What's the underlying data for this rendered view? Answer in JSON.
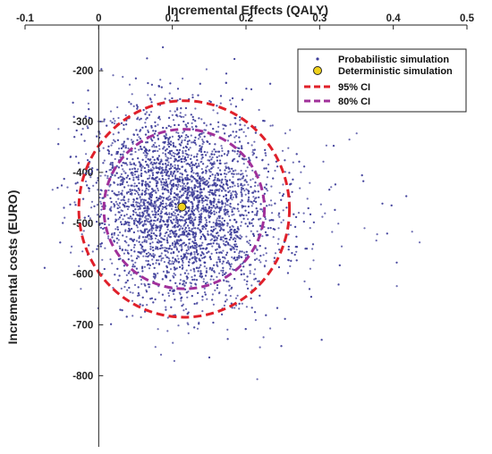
{
  "chart_data": {
    "type": "scatter",
    "xlabel": "Incremental Effects (QALY)",
    "ylabel": "Incremental costs (EURO)",
    "xlim": [
      -0.1,
      0.5
    ],
    "ylim": [
      -940,
      -110
    ],
    "y_reversed": true,
    "x_axis_position": "top",
    "x_ticks": [
      -0.1,
      0,
      0.1,
      0.2,
      0.3,
      0.4,
      0.5
    ],
    "y_ticks": [
      -200,
      -300,
      -400,
      -500,
      -600,
      -700,
      -800
    ],
    "x_tick_labels": [
      "-0.1",
      "0",
      "0.1",
      "0.2",
      "0.3",
      "0.4",
      "0.5"
    ],
    "y_tick_labels": [
      "-200",
      "-300",
      "-400",
      "-500",
      "-600",
      "-700",
      "-800"
    ],
    "grid": false,
    "legend_position": "top-right",
    "colors": {
      "probabilistic": "#3d3d9a",
      "deterministic_fill": "#f0d21c",
      "ci95": "#e0202a",
      "ci80": "#a0309a",
      "axis": "#222222"
    },
    "series": [
      {
        "name": "Probabilistic simulation",
        "kind": "points",
        "n_points": 5000,
        "mean": [
          0.112,
          -470
        ],
        "sd": [
          0.06,
          95
        ],
        "correlation": -0.15
      },
      {
        "name": "Deterministic simulation",
        "kind": "point",
        "x": 0.113,
        "y": -468
      },
      {
        "name": "95% CI",
        "kind": "ellipse",
        "center": [
          0.116,
          -472
        ],
        "radii": [
          0.143,
          213
        ]
      },
      {
        "name": "80% CI",
        "kind": "ellipse",
        "center": [
          0.116,
          -472
        ],
        "radii": [
          0.109,
          157
        ]
      }
    ]
  }
}
